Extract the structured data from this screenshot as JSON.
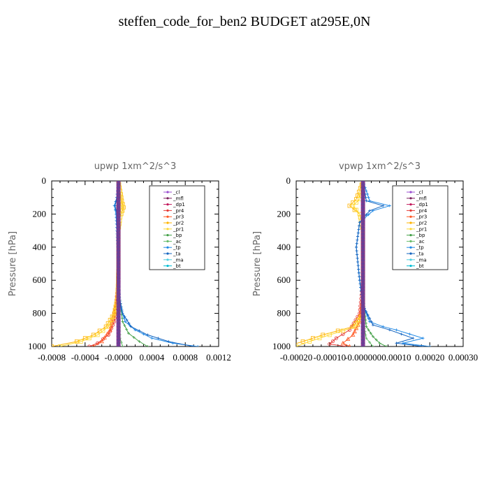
{
  "title": "steffen_code_for_ben2  BUDGET at295E,0N",
  "chart_data": [
    {
      "type": "line",
      "title": "upwp   1xm^2/s^3",
      "ylabel": "Pressure [hPa]",
      "xlabel": "",
      "xlim": [
        -0.0008,
        0.0012
      ],
      "ylim": [
        1000,
        0
      ],
      "yticks": [
        "0",
        "200",
        "400",
        "600",
        "800",
        "1000"
      ],
      "xticks": [
        "-0.0008",
        "-0.0004",
        "-0.0000",
        "0.0004",
        "0.0008",
        "0.0012"
      ],
      "legend_position": "top-right",
      "series": [
        {
          "name": "_cl",
          "color": "#9b4fd1",
          "marker": "cross",
          "x": [
            0,
            0,
            0,
            0,
            0,
            0,
            0,
            0,
            0,
            0,
            0
          ],
          "y": [
            0,
            100,
            200,
            300,
            400,
            500,
            600,
            700,
            800,
            900,
            1000
          ]
        },
        {
          "name": "_mfl",
          "color": "#7a1f5c",
          "marker": "diamond",
          "x": [
            0,
            0,
            0,
            0,
            0,
            0,
            0,
            0,
            0,
            0,
            0
          ],
          "y": [
            0,
            100,
            200,
            300,
            400,
            500,
            600,
            700,
            800,
            900,
            1000
          ]
        },
        {
          "name": "_dp1",
          "color": "#c2185b",
          "marker": "circle",
          "x": [
            0,
            0,
            0,
            0,
            0,
            0,
            0,
            0,
            0,
            0,
            0
          ],
          "y": [
            0,
            100,
            200,
            300,
            400,
            500,
            600,
            700,
            800,
            900,
            1000
          ]
        },
        {
          "name": "_pr4",
          "color": "#e53935",
          "marker": "circle",
          "x": [
            0,
            0,
            -1e-05,
            0,
            0,
            0,
            0,
            -2e-05,
            -5e-05,
            -0.00012,
            -0.00025,
            -0.00035
          ],
          "y": [
            0,
            100,
            200,
            300,
            400,
            500,
            600,
            700,
            850,
            930,
            980,
            1000
          ]
        },
        {
          "name": "_pr3",
          "color": "#ff5722",
          "marker": "triangle",
          "x": [
            0,
            0,
            0,
            0,
            0,
            0,
            0,
            -3e-05,
            -0.0001,
            -0.0002,
            -0.0003
          ],
          "y": [
            0,
            100,
            200,
            300,
            400,
            500,
            600,
            750,
            900,
            970,
            1000
          ]
        },
        {
          "name": "_pr2",
          "color": "#ffb300",
          "marker": "square",
          "x": [
            0,
            4e-05,
            6e-05,
            2e-05,
            0,
            0,
            -1e-05,
            -5e-05,
            -0.00015,
            -0.0003,
            -0.0005,
            -0.0008
          ],
          "y": [
            0,
            120,
            160,
            220,
            300,
            500,
            700,
            800,
            880,
            930,
            970,
            1000
          ]
        },
        {
          "name": "_pr1",
          "color": "#fdd835",
          "marker": "square",
          "x": [
            0,
            3e-05,
            5e-05,
            2e-05,
            0,
            0,
            -1e-05,
            -4e-05,
            -0.00012,
            -0.00025,
            -0.00045,
            -0.0007
          ],
          "y": [
            0,
            120,
            160,
            220,
            300,
            500,
            700,
            800,
            880,
            930,
            970,
            1000
          ]
        },
        {
          "name": "_bp",
          "color": "#43a047",
          "marker": "x",
          "x": [
            0,
            0,
            0,
            0,
            0,
            0,
            0,
            1e-05,
            5e-05,
            0.00012,
            0.00025,
            0.00035
          ],
          "y": [
            0,
            100,
            200,
            300,
            400,
            500,
            600,
            700,
            850,
            920,
            970,
            1000
          ]
        },
        {
          "name": "_ac",
          "color": "#66bb6a",
          "marker": "x",
          "x": [
            0,
            0,
            0,
            0,
            0,
            0,
            0,
            0,
            2e-05,
            5e-05
          ],
          "y": [
            0,
            100,
            200,
            300,
            400,
            500,
            600,
            800,
            950,
            1000
          ]
        },
        {
          "name": "_tp",
          "color": "#1e88e5",
          "marker": "plus",
          "x": [
            0,
            -2e-05,
            -5e-05,
            -3e-05,
            -2e-05,
            -1e-05,
            0,
            2e-05,
            8e-05,
            0.0002,
            0.0004,
            0.00065,
            0.00095
          ],
          "y": [
            0,
            100,
            150,
            200,
            300,
            400,
            600,
            750,
            850,
            900,
            950,
            980,
            1000
          ]
        },
        {
          "name": "_ta",
          "color": "#1565c0",
          "marker": "plus",
          "x": [
            0,
            -2e-05,
            -4e-05,
            -2e-05,
            -1e-05,
            0,
            1e-05,
            5e-05,
            0.00015,
            0.00035,
            0.0006,
            0.0009
          ],
          "y": [
            0,
            100,
            150,
            200,
            350,
            500,
            700,
            800,
            880,
            930,
            970,
            1000
          ]
        },
        {
          "name": "_ma",
          "color": "#4dd0e1",
          "marker": "dash",
          "x": [
            0,
            0,
            0,
            0,
            0,
            0,
            0,
            0,
            0,
            0,
            0
          ],
          "y": [
            0,
            100,
            200,
            300,
            400,
            500,
            600,
            700,
            800,
            900,
            1000
          ]
        },
        {
          "name": "_bt",
          "color": "#00bcd4",
          "marker": "diamond",
          "x": [
            0,
            0,
            0,
            0,
            0,
            0,
            0,
            0,
            0,
            0,
            0
          ],
          "y": [
            0,
            100,
            200,
            300,
            400,
            500,
            600,
            700,
            800,
            900,
            1000
          ]
        }
      ]
    },
    {
      "type": "line",
      "title": "vpwp   1xm^2/s^3",
      "ylabel": "Pressure [hPa]",
      "xlabel": "",
      "xlim": [
        -0.0002,
        0.0003
      ],
      "ylim": [
        1000,
        0
      ],
      "yticks": [
        "0",
        "200",
        "400",
        "600",
        "800",
        "1000"
      ],
      "xticks": [
        "-0.00020",
        "-0.00010",
        "-0.000000",
        "0.00010",
        "0.00020",
        "0.00030"
      ],
      "legend_position": "top-right",
      "series": [
        {
          "name": "_cl",
          "color": "#9b4fd1",
          "marker": "cross",
          "x": [
            0,
            0,
            0,
            0,
            0,
            0,
            0,
            0,
            0,
            0,
            0
          ],
          "y": [
            0,
            100,
            200,
            300,
            400,
            500,
            600,
            700,
            800,
            900,
            1000
          ]
        },
        {
          "name": "_mfl",
          "color": "#7a1f5c",
          "marker": "diamond",
          "x": [
            0,
            0,
            0,
            0,
            0,
            0,
            0,
            0,
            0,
            0,
            0
          ],
          "y": [
            0,
            100,
            200,
            300,
            400,
            500,
            600,
            700,
            800,
            900,
            1000
          ]
        },
        {
          "name": "_dp1",
          "color": "#c2185b",
          "marker": "circle",
          "x": [
            0,
            0,
            0,
            0,
            0,
            0,
            0,
            0,
            0,
            0,
            0
          ],
          "y": [
            0,
            100,
            200,
            300,
            400,
            500,
            600,
            700,
            800,
            900,
            1000
          ]
        },
        {
          "name": "_pr4",
          "color": "#e53935",
          "marker": "circle",
          "x": [
            0,
            0,
            0,
            0,
            0,
            0,
            0,
            -1e-05,
            -4e-05,
            -8e-05,
            -0.0001,
            -5e-05
          ],
          "y": [
            0,
            100,
            200,
            300,
            400,
            500,
            600,
            800,
            900,
            950,
            985,
            1000
          ]
        },
        {
          "name": "_pr3",
          "color": "#ff5722",
          "marker": "triangle",
          "x": [
            0,
            0,
            0,
            0,
            0,
            0,
            0,
            -1e-05,
            -3e-05,
            -6e-05,
            -4e-05
          ],
          "y": [
            0,
            100,
            200,
            300,
            400,
            500,
            700,
            850,
            930,
            980,
            1000
          ]
        },
        {
          "name": "_pr2",
          "color": "#ffb300",
          "marker": "square",
          "x": [
            0,
            -2e-05,
            -4e-05,
            -1e-05,
            0,
            0,
            0,
            -3e-05,
            -0.00012,
            -0.00018,
            -0.00023
          ],
          "y": [
            0,
            110,
            150,
            200,
            300,
            500,
            800,
            880,
            930,
            970,
            1000
          ]
        },
        {
          "name": "_pr1",
          "color": "#fdd835",
          "marker": "square",
          "x": [
            0,
            -1e-05,
            -3e-05,
            -1e-05,
            0,
            0,
            0,
            -2e-05,
            -0.0001,
            -0.00016,
            -0.0002
          ],
          "y": [
            0,
            110,
            150,
            200,
            300,
            500,
            800,
            880,
            930,
            970,
            1000
          ]
        },
        {
          "name": "_bp",
          "color": "#43a047",
          "marker": "x",
          "x": [
            0,
            0,
            0,
            0,
            0,
            0,
            0,
            1e-05,
            3e-05,
            5e-05,
            7e-05
          ],
          "y": [
            0,
            100,
            200,
            300,
            400,
            500,
            700,
            880,
            940,
            980,
            1000
          ]
        },
        {
          "name": "_ac",
          "color": "#66bb6a",
          "marker": "x",
          "x": [
            0,
            0,
            0,
            0,
            0,
            0,
            0,
            0,
            1e-05,
            3e-05
          ],
          "y": [
            0,
            100,
            200,
            300,
            400,
            500,
            700,
            850,
            950,
            1000
          ]
        },
        {
          "name": "_tp",
          "color": "#1e88e5",
          "marker": "plus",
          "x": [
            0,
            2e-05,
            8e-05,
            3e-05,
            -1e-05,
            -2e-05,
            -1e-05,
            0,
            2e-05,
            6e-05,
            0.0001,
            0.00018,
            0.00012,
            0.0002
          ],
          "y": [
            0,
            120,
            150,
            180,
            250,
            400,
            600,
            750,
            850,
            880,
            900,
            950,
            980,
            1000
          ]
        },
        {
          "name": "_ta",
          "color": "#1565c0",
          "marker": "plus",
          "x": [
            0,
            1e-05,
            6e-05,
            2e-05,
            -1e-05,
            -2e-05,
            -1e-05,
            0,
            3e-05,
            8e-05,
            0.00015,
            0.0001,
            0.00018
          ],
          "y": [
            0,
            120,
            150,
            180,
            250,
            400,
            600,
            750,
            870,
            900,
            950,
            980,
            1000
          ]
        },
        {
          "name": "_ma",
          "color": "#4dd0e1",
          "marker": "dash",
          "x": [
            0,
            0,
            0,
            0,
            0,
            0,
            0,
            0,
            0,
            0,
            0
          ],
          "y": [
            0,
            100,
            200,
            300,
            400,
            500,
            600,
            700,
            800,
            900,
            1000
          ]
        },
        {
          "name": "_bt",
          "color": "#00bcd4",
          "marker": "diamond",
          "x": [
            0,
            0,
            0,
            0,
            0,
            0,
            0,
            0,
            0,
            0,
            0
          ],
          "y": [
            0,
            100,
            200,
            300,
            400,
            500,
            600,
            700,
            800,
            900,
            1000
          ]
        }
      ]
    }
  ]
}
